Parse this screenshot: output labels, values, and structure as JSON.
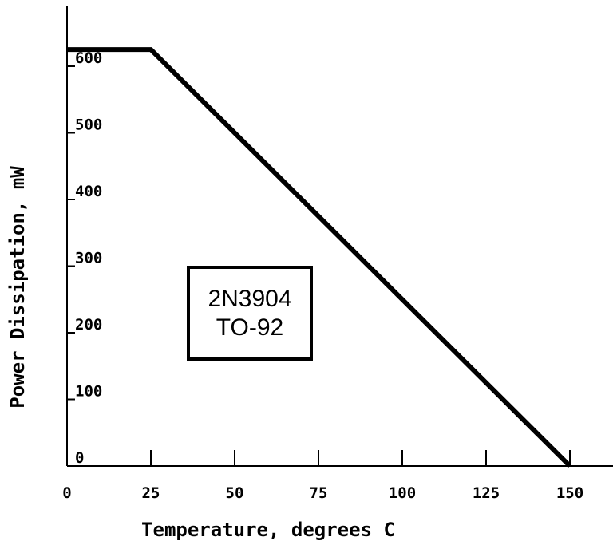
{
  "chart_data": {
    "type": "line",
    "x": [
      0,
      25,
      150
    ],
    "series": [
      {
        "values": [
          625,
          625,
          0
        ],
        "color": "#000000"
      }
    ],
    "title": "",
    "xlabel": "Temperature, degrees C",
    "ylabel": "Power Dissipation, mW",
    "xlim": [
      0,
      160
    ],
    "ylim": [
      0,
      680
    ],
    "x_ticks": [
      0,
      25,
      50,
      75,
      100,
      125,
      150
    ],
    "x_tick_labels": [
      "0",
      "25",
      "50",
      "75",
      "100",
      "125",
      "150"
    ],
    "y_ticks": [
      0,
      100,
      200,
      300,
      400,
      500,
      600
    ],
    "y_tick_labels": [
      "0",
      "100",
      "200",
      "300",
      "400",
      "500",
      "600"
    ],
    "grid": false,
    "legend": "none",
    "annotations": [
      {
        "lines": [
          "2N3904",
          "TO-92"
        ]
      }
    ]
  }
}
